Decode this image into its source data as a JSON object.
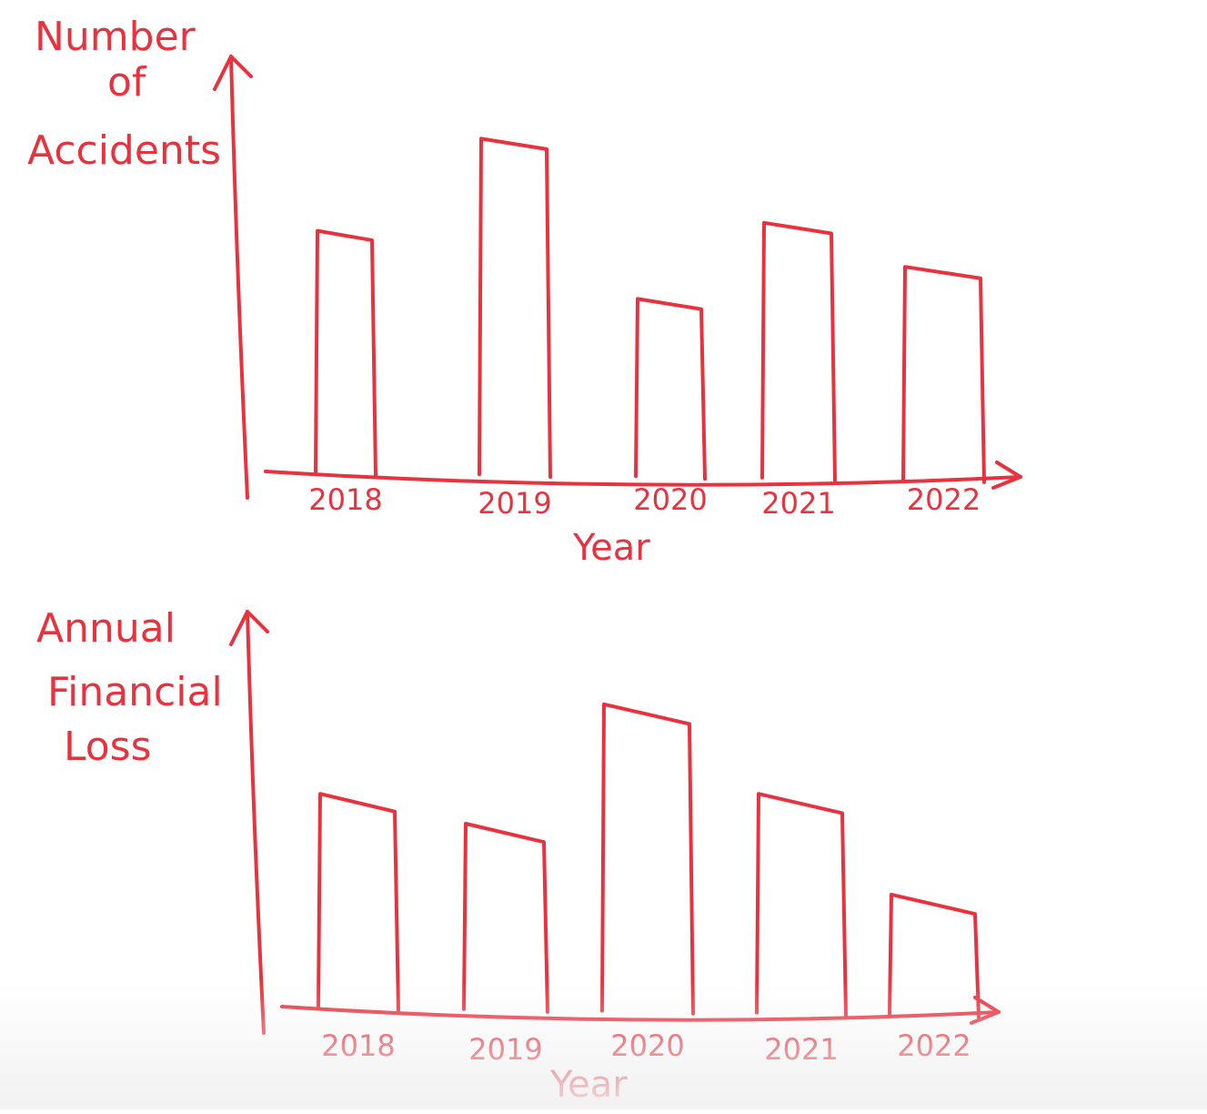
{
  "colors": {
    "ink": "#e8333f",
    "background": "#ffffff"
  },
  "chart_data": [
    {
      "type": "bar",
      "title": "",
      "ylabel_lines": [
        "Number",
        "of",
        "Accidents"
      ],
      "xlabel": "Year",
      "categories": [
        "2018",
        "2019",
        "2020",
        "2021",
        "2022"
      ],
      "values": [
        61,
        84,
        44,
        63,
        52
      ],
      "ylim": [
        0,
        100
      ],
      "grid": false,
      "legend": "none"
    },
    {
      "type": "bar",
      "title": "",
      "ylabel_lines": [
        "Annual",
        "Financial",
        "Loss"
      ],
      "xlabel": "Year",
      "categories": [
        "2018",
        "2019",
        "2020",
        "2021",
        "2022"
      ],
      "values": [
        58,
        50,
        82,
        58,
        31
      ],
      "ylim": [
        0,
        100
      ],
      "grid": false,
      "legend": "none"
    }
  ]
}
